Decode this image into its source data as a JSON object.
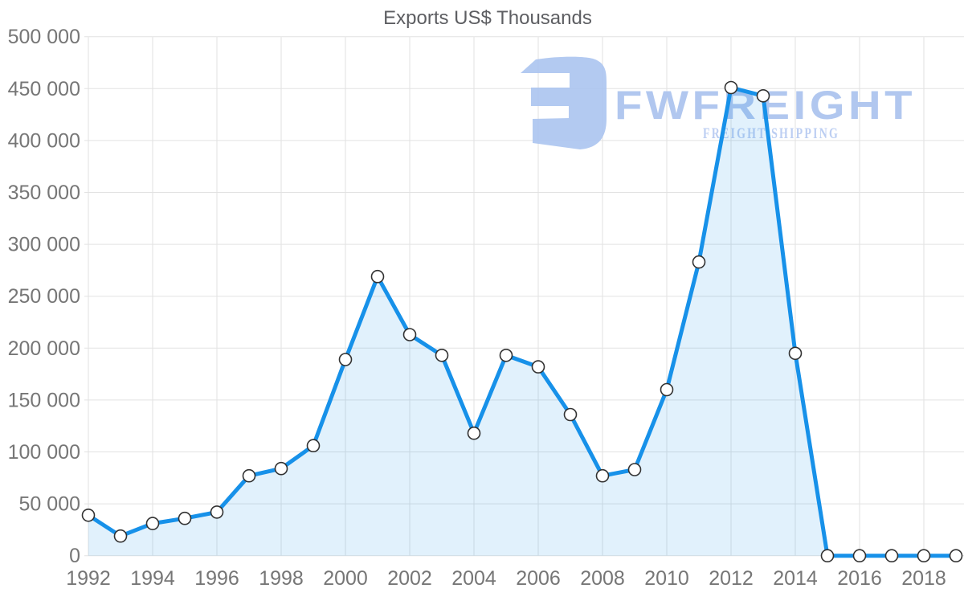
{
  "page": {
    "title": "Exports US$ Thousands"
  },
  "chart_data": {
    "type": "area",
    "title": "Exports US$ Thousands",
    "xlabel": "",
    "ylabel": "",
    "x": [
      1992,
      1993,
      1994,
      1995,
      1996,
      1997,
      1998,
      1999,
      2000,
      2001,
      2002,
      2003,
      2004,
      2005,
      2006,
      2007,
      2008,
      2009,
      2010,
      2011,
      2012,
      2013,
      2014,
      2015,
      2016,
      2017,
      2018,
      2019
    ],
    "series": [
      {
        "name": "Exports US$ Thousands",
        "values": [
          39000,
          19000,
          31000,
          36000,
          42000,
          77000,
          84000,
          106000,
          189000,
          269000,
          213000,
          193000,
          118000,
          193000,
          182000,
          136000,
          77000,
          83000,
          160000,
          283000,
          451000,
          443000,
          195000,
          0,
          0,
          0,
          0,
          0
        ]
      }
    ],
    "ylim": [
      0,
      500000
    ],
    "y_tick_step": 50000,
    "y_tick_labels": [
      "0",
      "50 000",
      "100 000",
      "150 000",
      "200 000",
      "250 000",
      "300 000",
      "350 000",
      "400 000",
      "450 000",
      "500 000"
    ],
    "x_tick_years": [
      1992,
      1994,
      1996,
      1998,
      2000,
      2002,
      2004,
      2006,
      2008,
      2010,
      2012,
      2014,
      2016,
      2018
    ],
    "grid": true,
    "legend_position": "none",
    "marker": "circle",
    "colors": {
      "line": "#1791e9",
      "area_fill": "rgba(23,145,233,0.13)",
      "marker_fill": "#ffffff",
      "marker_stroke": "#323232",
      "gridline": "#e2e2e2",
      "tick_label": "#767676",
      "title": "#5d5e62"
    }
  },
  "watermark": {
    "brand": "FWFREIGHT",
    "tagline": "FREIGHT SHIPPING",
    "logo_icon": "fwfreight-logo-icon",
    "brand_color": "#a9c2ee",
    "tagline_color": "#b5c9f1",
    "logo_color": "#abc4ef"
  }
}
